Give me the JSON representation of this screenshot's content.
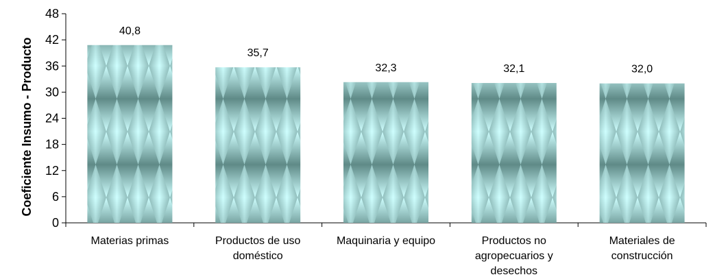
{
  "chart_data": {
    "type": "bar",
    "ylabel": "Coeficiente Insumo  - Producto",
    "categories": [
      [
        "Materias primas"
      ],
      [
        "Productos de uso",
        "doméstico"
      ],
      [
        "Maquinaria y equipo"
      ],
      [
        "Productos no",
        "agropecuarios y",
        "desechos"
      ],
      [
        "Materiales de",
        "construcción"
      ]
    ],
    "values": [
      40.8,
      35.7,
      32.3,
      32.1,
      32.0
    ],
    "value_labels": [
      "40,8",
      "35,7",
      "32,3",
      "32,1",
      "32,0"
    ],
    "ylim": [
      0,
      48
    ],
    "yticks": [
      0,
      6,
      12,
      18,
      24,
      30,
      36,
      42,
      48
    ],
    "grid": false,
    "legend": "none",
    "bar_colors": {
      "light": "#cfffff",
      "dark": "#5f8a87"
    }
  }
}
